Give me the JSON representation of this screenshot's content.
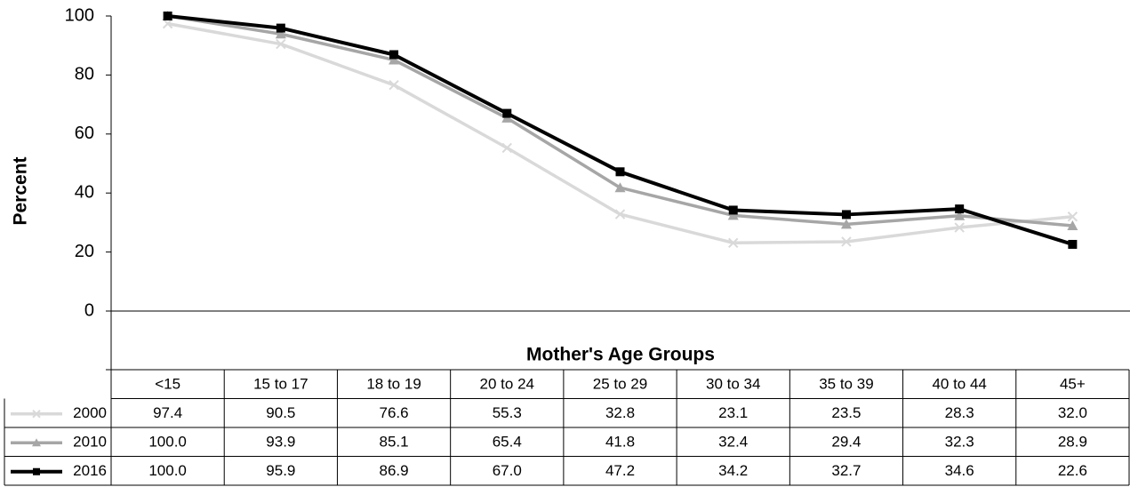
{
  "chart_data": {
    "type": "line",
    "x_label": "Mother's Age Groups",
    "y_label": "Percent",
    "categories": [
      "<15",
      "15 to 17",
      "18 to 19",
      "20 to 24",
      "25 to 29",
      "30 to 34",
      "35 to 39",
      "40 to 44",
      "45+"
    ],
    "series": [
      {
        "name": "2000",
        "color": "#d9d9d9",
        "marker": "x",
        "values": [
          97.4,
          90.5,
          76.6,
          55.3,
          32.8,
          23.1,
          23.5,
          28.3,
          32.0
        ],
        "value_labels": [
          "97.4",
          "90.5",
          "76.6",
          "55.3",
          "32.8",
          "23.1",
          "23.5",
          "28.3",
          "32.0"
        ]
      },
      {
        "name": "2010",
        "color": "#a6a6a6",
        "marker": "triangle",
        "values": [
          100.0,
          93.9,
          85.1,
          65.4,
          41.8,
          32.4,
          29.4,
          32.3,
          28.9
        ],
        "value_labels": [
          "100.0",
          "93.9",
          "85.1",
          "65.4",
          "41.8",
          "32.4",
          "29.4",
          "32.3",
          "28.9"
        ]
      },
      {
        "name": "2016",
        "color": "#000000",
        "marker": "square",
        "values": [
          100.0,
          95.9,
          86.9,
          67.0,
          47.2,
          34.2,
          32.7,
          34.6,
          22.6
        ],
        "value_labels": [
          "100.0",
          "95.9",
          "86.9",
          "67.0",
          "47.2",
          "34.2",
          "32.7",
          "34.6",
          "22.6"
        ]
      }
    ],
    "ylim": [
      0,
      100
    ],
    "yticks": [
      0,
      20,
      40,
      60,
      80,
      100
    ],
    "grid": false
  }
}
